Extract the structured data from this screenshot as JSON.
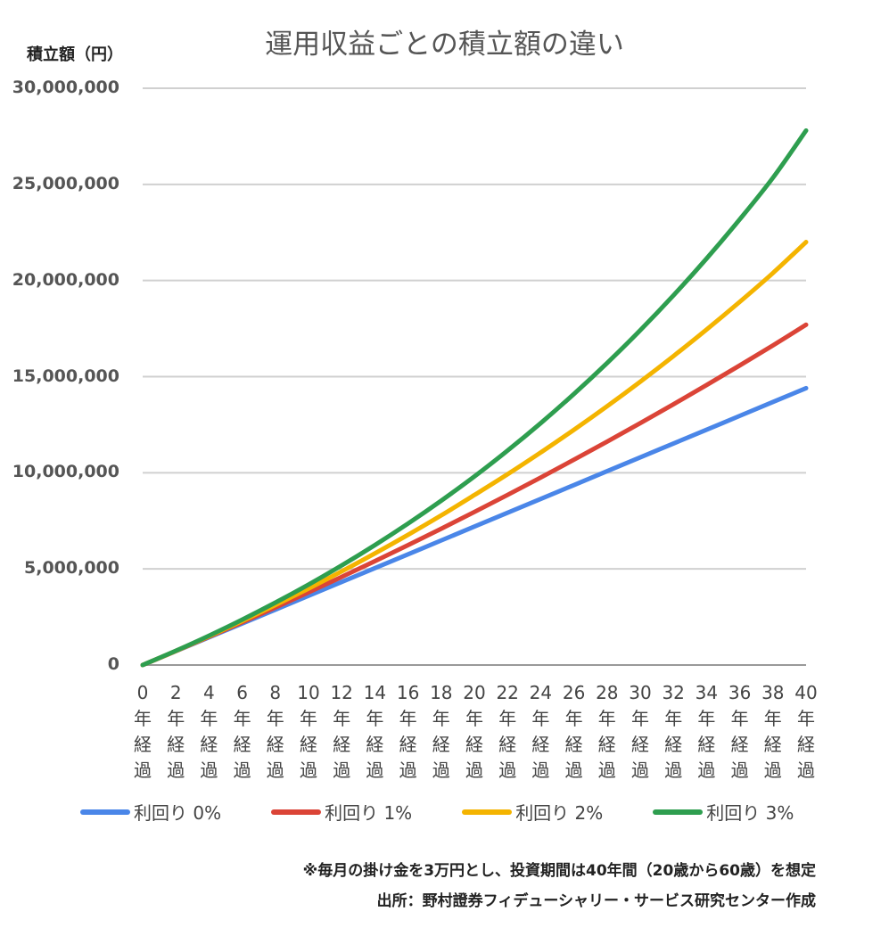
{
  "chart_data": {
    "type": "line",
    "title": "運用収益ごとの積立額の違い",
    "ylabel": "積立額（円）",
    "ylim": [
      0,
      30000000
    ],
    "yticks": [
      "30,000,000",
      "25,000,000",
      "20,000,000",
      "15,000,000",
      "10,000,000",
      "5,000,000",
      "0"
    ],
    "ytick_values": [
      30000000,
      25000000,
      20000000,
      15000000,
      10000000,
      5000000,
      0
    ],
    "x_tick_labels": [
      "0\n年\n経\n過",
      "2\n年\n経\n過",
      "4\n年\n経\n過",
      "6\n年\n経\n過",
      "8\n年\n経\n過",
      "10\n年\n経\n過",
      "12\n年\n経\n過",
      "14\n年\n経\n過",
      "16\n年\n経\n過",
      "18\n年\n経\n過",
      "20\n年\n経\n過",
      "22\n年\n経\n過",
      "24\n年\n経\n過",
      "26\n年\n経\n過",
      "28\n年\n経\n過",
      "30\n年\n経\n過",
      "32\n年\n経\n過",
      "34\n年\n経\n過",
      "36\n年\n経\n過",
      "38\n年\n経\n過",
      "40\n年\n経\n過"
    ],
    "x": [
      0,
      2,
      4,
      6,
      8,
      10,
      12,
      14,
      16,
      18,
      20,
      22,
      24,
      26,
      28,
      30,
      32,
      34,
      36,
      38,
      40
    ],
    "grid": true,
    "legend_position": "bottom",
    "series": [
      {
        "name": "利回り 0%",
        "color": "#4a86e8",
        "values": [
          0,
          720000,
          1440000,
          2160000,
          2880000,
          3600000,
          4320000,
          5040000,
          5760000,
          6480000,
          7200000,
          7920000,
          8640000,
          9360000,
          10080000,
          10800000,
          11520000,
          12240000,
          12960000,
          13680000,
          14400000
        ]
      },
      {
        "name": "利回り 1%",
        "color": "#db4437",
        "values": [
          0,
          726000,
          1467000,
          2222000,
          2993000,
          3780000,
          4583000,
          5402000,
          6238000,
          7090000,
          7960000,
          8848000,
          9753000,
          10677000,
          11619000,
          12580000,
          13561000,
          14561000,
          15582000,
          16624000,
          17700000
        ]
      },
      {
        "name": "利回り 2%",
        "color": "#f4b400",
        "values": [
          0,
          733000,
          1496000,
          2290000,
          3116000,
          3976000,
          4871000,
          5803000,
          6773000,
          7783000,
          8842000,
          9922000,
          11054000,
          12233000,
          13459000,
          14736000,
          16065000,
          17449000,
          18889000,
          20388000,
          22000000
        ]
      },
      {
        "name": "利回り 3%",
        "color": "#2e9e4f",
        "values": [
          0,
          741000,
          1526000,
          2360000,
          3245000,
          4184000,
          5180000,
          6237000,
          7358000,
          8547000,
          9806000,
          11153000,
          12581000,
          14096000,
          15704000,
          17410000,
          19221000,
          21141000,
          23180000,
          25343000,
          27800000
        ]
      }
    ]
  },
  "notes": {
    "line1": "※毎月の掛け金を3万円とし、投資期間は40年間（20歳から60歳）を想定",
    "line2": "出所：野村證券フィデューシャリー・サービス研究センター作成"
  }
}
